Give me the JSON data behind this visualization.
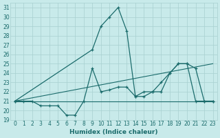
{
  "xlabel": "Humidex (Indice chaleur)",
  "bg_color": "#c8eaea",
  "grid_color": "#a8d0d0",
  "line_color": "#1a6b6b",
  "xlim": [
    -0.5,
    23.5
  ],
  "ylim": [
    19,
    31.5
  ],
  "yticks": [
    19,
    20,
    21,
    22,
    23,
    24,
    25,
    26,
    27,
    28,
    29,
    30,
    31
  ],
  "xticks": [
    0,
    1,
    2,
    3,
    4,
    5,
    6,
    7,
    8,
    9,
    10,
    11,
    12,
    13,
    14,
    15,
    16,
    17,
    18,
    19,
    20,
    21,
    22,
    23
  ],
  "series": [
    {
      "x": [
        0,
        9,
        10,
        11,
        12,
        13,
        14,
        15,
        16,
        17,
        18,
        19,
        20,
        21,
        22,
        23
      ],
      "y": [
        21,
        26.5,
        29,
        30,
        31,
        28.5,
        21.5,
        21.5,
        22,
        22,
        24,
        25,
        25,
        24.5,
        21,
        21
      ],
      "markers": true
    },
    {
      "x": [
        0,
        1,
        2,
        3,
        4,
        5,
        6,
        7,
        8,
        9,
        10,
        11,
        12,
        13,
        14,
        15,
        16,
        17,
        18,
        19,
        20,
        21,
        22,
        23
      ],
      "y": [
        21,
        21,
        21,
        20.5,
        20.5,
        20.5,
        19.5,
        19.5,
        21,
        24.5,
        22,
        22.2,
        22.5,
        22.5,
        21.5,
        22,
        22,
        23,
        24,
        25,
        25,
        21,
        21,
        21
      ],
      "markers": true
    },
    {
      "x": [
        0,
        23
      ],
      "y": [
        21,
        21
      ],
      "markers": false
    },
    {
      "x": [
        0,
        23
      ],
      "y": [
        21,
        25
      ],
      "markers": false
    }
  ]
}
